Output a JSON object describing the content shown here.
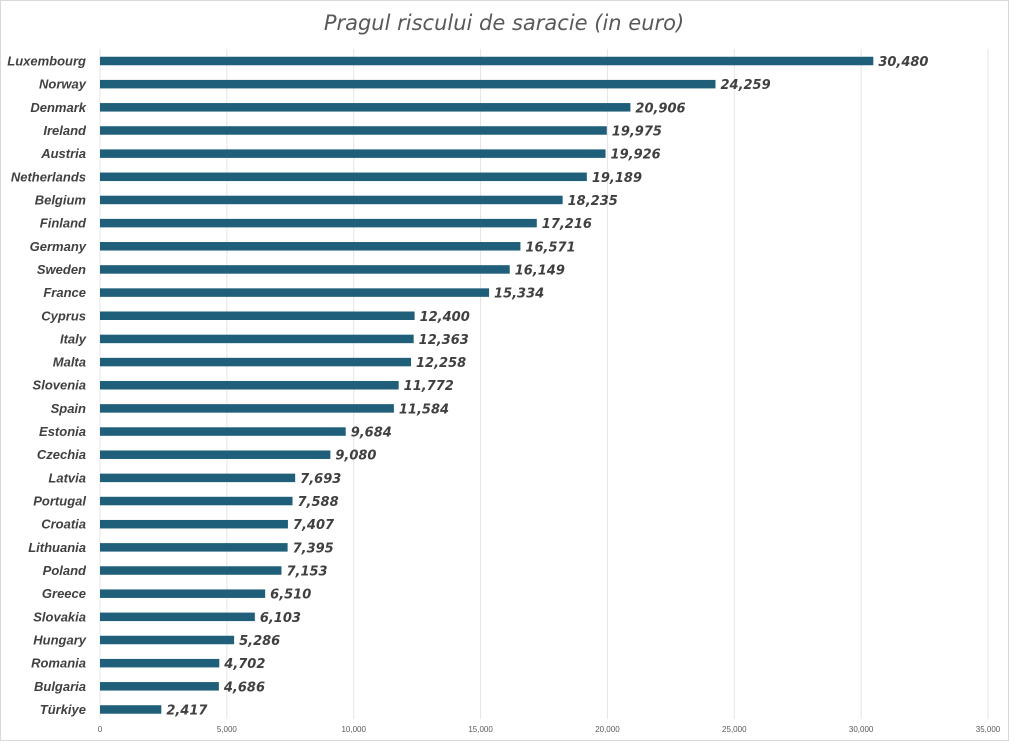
{
  "chart_data": {
    "type": "bar",
    "orientation": "horizontal",
    "title": "Pragul riscului de saracie (in euro)",
    "xlabel": "",
    "ylabel": "",
    "xlim": [
      0,
      35000
    ],
    "x_ticks": [
      0,
      5000,
      10000,
      15000,
      20000,
      25000,
      30000,
      35000
    ],
    "x_tick_labels": [
      "0",
      "5,000",
      "10,000",
      "15,000",
      "20,000",
      "25,000",
      "30,000",
      "35,000"
    ],
    "grid": true,
    "legend": "none",
    "bar_color": "#1f5f7a",
    "categories": [
      "Luxembourg",
      "Norway",
      "Denmark",
      "Ireland",
      "Austria",
      "Netherlands",
      "Belgium",
      "Finland",
      "Germany",
      "Sweden",
      "France",
      "Cyprus",
      "Italy",
      "Malta",
      "Slovenia",
      "Spain",
      "Estonia",
      "Czechia",
      "Latvia",
      "Portugal",
      "Croatia",
      "Lithuania",
      "Poland",
      "Greece",
      "Slovakia",
      "Hungary",
      "Romania",
      "Bulgaria",
      "Türkiye"
    ],
    "values": [
      30480,
      24259,
      20906,
      19975,
      19926,
      19189,
      18235,
      17216,
      16571,
      16149,
      15334,
      12400,
      12363,
      12258,
      11772,
      11584,
      9684,
      9080,
      7693,
      7588,
      7407,
      7395,
      7153,
      6510,
      6103,
      5286,
      4702,
      4686,
      2417
    ],
    "data_labels": [
      "30,480",
      "24,259",
      "20,906",
      "19,975",
      "19,926",
      "19,189",
      "18,235",
      "17,216",
      "16,571",
      "16,149",
      "15,334",
      "12,400",
      "12,363",
      "12,258",
      "11,772",
      "11,584",
      "9,684",
      "9,080",
      "7,693",
      "7,588",
      "7,407",
      "7,395",
      "7,153",
      "6,510",
      "6,103",
      "5,286",
      "4,702",
      "4,686",
      "2,417"
    ]
  }
}
